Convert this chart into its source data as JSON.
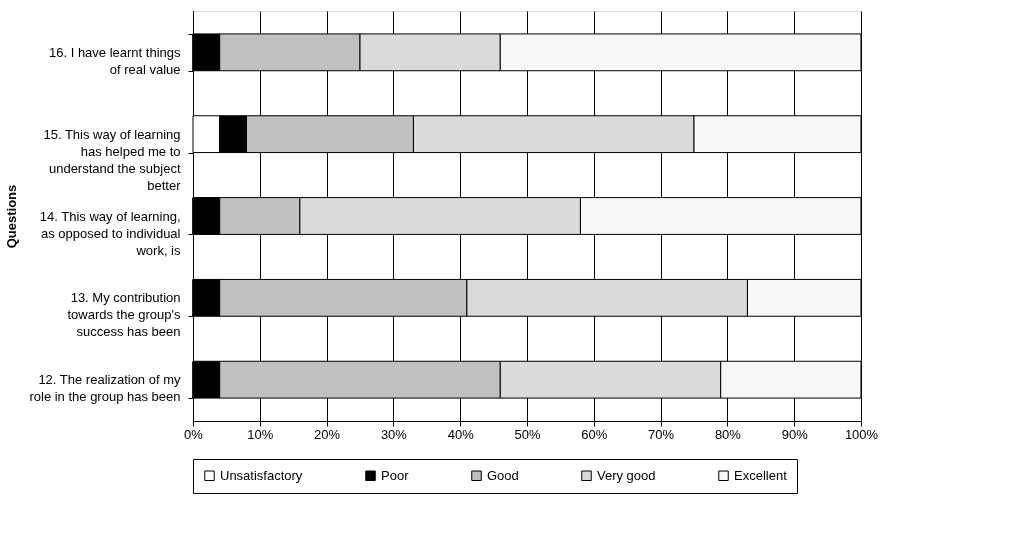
{
  "chart_data": {
    "type": "bar",
    "orientation": "horizontal",
    "stacked": true,
    "ylabel": "Questions",
    "categories": [
      "16. I have learnt things of real value",
      "15. This way of learning has helped me to understand the subject better",
      "14. This way of learning, as opposed to individual work, is",
      "13. My contribution towards the group's success has been",
      "12. The realization of my role in the group has been"
    ],
    "series": [
      {
        "name": "Unsatisfactory",
        "color": "#ffffff",
        "values": [
          0,
          4,
          0,
          0,
          0
        ]
      },
      {
        "name": "Poor",
        "color": "#000000",
        "values": [
          4,
          4,
          4,
          4,
          4
        ]
      },
      {
        "name": "Good",
        "color": "#c0c0c0",
        "values": [
          21,
          25,
          12,
          37,
          42
        ]
      },
      {
        "name": "Very good",
        "color": "#dadada",
        "values": [
          21,
          42,
          42,
          42,
          33
        ]
      },
      {
        "name": "Excellent",
        "color": "#f7f7f7",
        "values": [
          54,
          25,
          42,
          17,
          21
        ]
      }
    ],
    "xlim": [
      0,
      100
    ],
    "xticks": [
      {
        "value": 0,
        "label": "0%"
      },
      {
        "value": 10,
        "label": "10%"
      },
      {
        "value": 20,
        "label": "20%"
      },
      {
        "value": 30,
        "label": "30%"
      },
      {
        "value": 40,
        "label": "40%"
      },
      {
        "value": 50,
        "label": "50%"
      },
      {
        "value": 60,
        "label": "60%"
      },
      {
        "value": 70,
        "label": "70%"
      },
      {
        "value": 80,
        "label": "80%"
      },
      {
        "value": 90,
        "label": "90%"
      },
      {
        "value": 100,
        "label": "100%"
      }
    ],
    "grid": "x",
    "legend": "bottom"
  }
}
